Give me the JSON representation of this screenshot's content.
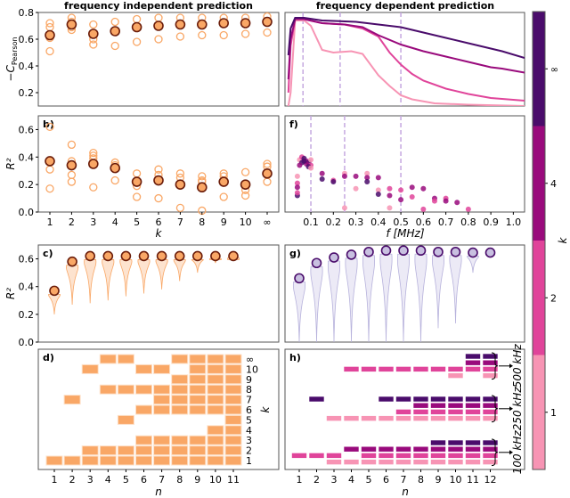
{
  "titles": {
    "left": "frequency independent prediction",
    "right": "frequency dependent prediction"
  },
  "colors": {
    "orange_light": "#f9a766",
    "orange_dark": "#6b1d0a",
    "orange_fill": "#fde3cf",
    "k_inf": "#4a0c6b",
    "k_4": "#990a7c",
    "k_2": "#e0449a",
    "k_1": "#f794b4",
    "dash": "#c5a8e0",
    "violin_g": "#eceaf6",
    "violin_g_edge": "#b7b2dc",
    "g_point": "#c8c0e0"
  },
  "chart_data": [
    {
      "panel": "a",
      "type": "scatter",
      "ylabel": "−C",
      "ylabel_sub": "Pearson",
      "ylim": [
        0.1,
        0.8
      ],
      "yticks": [
        "0.2",
        "0.4",
        "0.6",
        "0.8"
      ],
      "categories": [
        "1",
        "2",
        "3",
        "4",
        "5",
        "6",
        "7",
        "8",
        "9",
        "10",
        "∞"
      ],
      "mean": [
        0.63,
        0.71,
        0.64,
        0.66,
        0.69,
        0.7,
        0.71,
        0.71,
        0.72,
        0.72,
        0.73
      ],
      "individual": [
        [
          0.72,
          0.69,
          0.63,
          0.61,
          0.51
        ],
        [
          0.76,
          0.73,
          0.69,
          0.67
        ],
        [
          0.71,
          0.6,
          0.56
        ],
        [
          0.73,
          0.55
        ],
        [
          0.75,
          0.58
        ],
        [
          0.76,
          0.6
        ],
        [
          0.76,
          0.62
        ],
        [
          0.76,
          0.63
        ],
        [
          0.76,
          0.63
        ],
        [
          0.76,
          0.64
        ],
        [
          0.77,
          0.65
        ]
      ]
    },
    {
      "panel": "b",
      "label": "b)",
      "type": "scatter",
      "ylabel": "R²",
      "xlabel": "k",
      "ylim": [
        0,
        0.7
      ],
      "yticks": [
        "0.0",
        "0.2",
        "0.4",
        "0.6"
      ],
      "categories": [
        "1",
        "2",
        "3",
        "4",
        "5",
        "6",
        "7",
        "8",
        "9",
        "10",
        "∞"
      ],
      "mean": [
        0.37,
        0.34,
        0.35,
        0.32,
        0.22,
        0.23,
        0.2,
        0.18,
        0.22,
        0.2,
        0.28
      ],
      "individual": [
        [
          0.62,
          0.31,
          0.17
        ],
        [
          0.49,
          0.37,
          0.27,
          0.22
        ],
        [
          0.43,
          0.41,
          0.39,
          0.18
        ],
        [
          0.36,
          0.34,
          0.23
        ],
        [
          0.28,
          0.19,
          0.11
        ],
        [
          0.31,
          0.27,
          0.1
        ],
        [
          0.28,
          0.25,
          0.03
        ],
        [
          0.26,
          0.23,
          0.22,
          0.01
        ],
        [
          0.28,
          0.26,
          0.11
        ],
        [
          0.29,
          0.16,
          0.12
        ],
        [
          0.35,
          0.33,
          0.22
        ]
      ]
    },
    {
      "panel": "c",
      "label": "c)",
      "type": "violin",
      "ylabel": "R²",
      "ylim": [
        0,
        0.7
      ],
      "yticks": [
        "0.0",
        "0.2",
        "0.4",
        "0.6"
      ],
      "best": [
        0.37,
        0.58,
        0.62,
        0.62,
        0.62,
        0.62,
        0.62,
        0.62,
        0.62,
        0.62,
        0.62
      ],
      "min": [
        0.2,
        0.27,
        0.28,
        0.3,
        0.33,
        0.35,
        0.38,
        0.44,
        0.5,
        0.57,
        0.61
      ]
    },
    {
      "panel": "d",
      "label": "d)",
      "type": "heatmap",
      "xlabel": "n",
      "ylabel": "k",
      "xticks": [
        "1",
        "2",
        "3",
        "4",
        "5",
        "6",
        "7",
        "8",
        "9",
        "10",
        "11"
      ],
      "rows": [
        {
          "k": "∞",
          "n": [
            4,
            5,
            8,
            9,
            10,
            11
          ]
        },
        {
          "k": "10",
          "n": [
            3,
            6,
            7,
            9,
            10,
            11
          ]
        },
        {
          "k": "9",
          "n": [
            8,
            9,
            10,
            11
          ]
        },
        {
          "k": "8",
          "n": [
            4,
            5,
            6,
            7,
            8,
            9,
            10,
            11
          ]
        },
        {
          "k": "7",
          "n": [
            2,
            7,
            8,
            9,
            10,
            11
          ]
        },
        {
          "k": "6",
          "n": [
            6,
            7,
            8,
            9,
            10,
            11
          ]
        },
        {
          "k": "5",
          "n": [
            5,
            11
          ]
        },
        {
          "k": "4",
          "n": [
            10,
            11
          ]
        },
        {
          "k": "3",
          "n": [
            6,
            7,
            8,
            9,
            10,
            11
          ]
        },
        {
          "k": "2",
          "n": [
            3,
            4,
            5,
            6,
            7,
            8,
            9,
            10,
            11
          ]
        },
        {
          "k": "1",
          "n": [
            1,
            2,
            3,
            4,
            5,
            6,
            7,
            8,
            9,
            10,
            11
          ]
        }
      ]
    },
    {
      "panel": "e",
      "type": "line",
      "ylim": [
        0.1,
        0.8
      ],
      "xlim": [
        -0.015,
        1.05
      ],
      "dashed_x": [
        0.065,
        0.23,
        0.5
      ],
      "series": [
        {
          "k": "1",
          "x": [
            0,
            0.01,
            0.03,
            0.07,
            0.1,
            0.15,
            0.2,
            0.28,
            0.33,
            0.4,
            0.45,
            0.5,
            0.55,
            0.65,
            0.8,
            1.05
          ],
          "y": [
            0.1,
            0.2,
            0.74,
            0.74,
            0.7,
            0.52,
            0.5,
            0.51,
            0.49,
            0.33,
            0.25,
            0.18,
            0.15,
            0.12,
            0.11,
            0.1
          ]
        },
        {
          "k": "2",
          "x": [
            0,
            0.01,
            0.03,
            0.07,
            0.15,
            0.25,
            0.33,
            0.4,
            0.45,
            0.5,
            0.55,
            0.6,
            0.7,
            0.8,
            0.9,
            1.05
          ],
          "y": [
            0.2,
            0.55,
            0.75,
            0.75,
            0.72,
            0.71,
            0.68,
            0.62,
            0.5,
            0.41,
            0.34,
            0.29,
            0.23,
            0.19,
            0.16,
            0.14
          ]
        },
        {
          "k": "4",
          "x": [
            0,
            0.01,
            0.03,
            0.07,
            0.15,
            0.25,
            0.33,
            0.4,
            0.5,
            0.6,
            0.7,
            0.8,
            0.9,
            0.95,
            1.05
          ],
          "y": [
            0.3,
            0.6,
            0.75,
            0.75,
            0.72,
            0.71,
            0.69,
            0.63,
            0.56,
            0.51,
            0.47,
            0.43,
            0.39,
            0.38,
            0.35
          ]
        },
        {
          "k": "∞",
          "x": [
            0,
            0.01,
            0.03,
            0.07,
            0.15,
            0.3,
            0.4,
            0.5,
            0.6,
            0.7,
            0.8,
            0.9,
            0.95,
            1.05
          ],
          "y": [
            0.48,
            0.68,
            0.76,
            0.76,
            0.74,
            0.73,
            0.71,
            0.69,
            0.65,
            0.61,
            0.57,
            0.53,
            0.51,
            0.46
          ]
        }
      ]
    },
    {
      "panel": "f",
      "label": "f)",
      "type": "scatter",
      "xlabel": "f [MHz]",
      "ylim": [
        0,
        0.7
      ],
      "xlim": [
        -0.015,
        1.05
      ],
      "xticks": [
        "0.1",
        "0.2",
        "0.3",
        "0.4",
        "0.5",
        "0.6",
        "0.7",
        "0.8",
        "0.9",
        "1.0"
      ],
      "dashed_x": [
        0.1,
        0.25,
        0.5
      ],
      "points": [
        [
          0.05,
          0.38,
          "1"
        ],
        [
          0.06,
          0.4,
          "2"
        ],
        [
          0.07,
          0.39,
          "∞"
        ],
        [
          0.08,
          0.37,
          "4"
        ],
        [
          0.09,
          0.36,
          "∞"
        ],
        [
          0.1,
          0.38,
          "1"
        ],
        [
          0.06,
          0.36,
          "∞"
        ],
        [
          0.08,
          0.35,
          "4"
        ],
        [
          0.1,
          0.34,
          "2"
        ],
        [
          0.05,
          0.34,
          "4"
        ],
        [
          0.09,
          0.33,
          "∞"
        ],
        [
          0.07,
          0.37,
          "∞"
        ],
        [
          0.1,
          0.32,
          "1"
        ],
        [
          0.04,
          0.26,
          "1"
        ],
        [
          0.04,
          0.21,
          "2"
        ],
        [
          0.04,
          0.18,
          "4"
        ],
        [
          0.04,
          0.12,
          "∞"
        ],
        [
          0.04,
          0.14,
          "2"
        ],
        [
          0.15,
          0.28,
          "4"
        ],
        [
          0.15,
          0.24,
          "∞"
        ],
        [
          0.2,
          0.23,
          "2"
        ],
        [
          0.2,
          0.22,
          "∞"
        ],
        [
          0.25,
          0.28,
          "1"
        ],
        [
          0.25,
          0.26,
          "4"
        ],
        [
          0.25,
          0.03,
          "1"
        ],
        [
          0.3,
          0.26,
          "4"
        ],
        [
          0.3,
          0.17,
          "1"
        ],
        [
          0.35,
          0.28,
          "1"
        ],
        [
          0.35,
          0.25,
          "4"
        ],
        [
          0.35,
          0.22,
          "∞"
        ],
        [
          0.4,
          0.25,
          "4"
        ],
        [
          0.4,
          0.16,
          "1"
        ],
        [
          0.4,
          0.13,
          "∞"
        ],
        [
          0.45,
          0.17,
          "2"
        ],
        [
          0.45,
          0.12,
          "4"
        ],
        [
          0.45,
          0.03,
          "1"
        ],
        [
          0.5,
          0.16,
          "2"
        ],
        [
          0.5,
          0.09,
          "4"
        ],
        [
          0.55,
          0.18,
          "4"
        ],
        [
          0.55,
          0.11,
          "2"
        ],
        [
          0.6,
          0.17,
          "4"
        ],
        [
          0.6,
          0.02,
          "2"
        ],
        [
          0.65,
          0.1,
          "4"
        ],
        [
          0.65,
          0.08,
          "2"
        ],
        [
          0.7,
          0.1,
          "2"
        ],
        [
          0.7,
          0.08,
          "4"
        ],
        [
          0.75,
          0.07,
          "4"
        ],
        [
          0.8,
          0.02,
          "2"
        ]
      ]
    },
    {
      "panel": "g",
      "label": "g)",
      "type": "violin",
      "ylim": [
        0,
        0.7
      ],
      "best": [
        0.46,
        0.57,
        0.61,
        0.63,
        0.65,
        0.66,
        0.66,
        0.66,
        0.65,
        0.65,
        0.645,
        0.645
      ],
      "min": [
        0,
        0,
        0,
        0,
        0,
        0,
        0,
        0,
        0.1,
        0.135,
        0.5,
        0.645
      ]
    },
    {
      "panel": "h",
      "label": "h)",
      "type": "heatmap",
      "xlabel": "n",
      "xticks": [
        "1",
        "2",
        "3",
        "4",
        "5",
        "6",
        "7",
        "8",
        "9",
        "10",
        "11",
        "12"
      ],
      "groups": [
        {
          "label": "500 kHz",
          "rows": [
            {
              "k": "∞",
              "n": [
                11,
                12
              ]
            },
            {
              "k": "4",
              "n": [
                11,
                12
              ]
            },
            {
              "k": "2",
              "n": [
                4,
                5,
                6,
                7,
                8,
                9,
                10,
                11,
                12
              ]
            },
            {
              "k": "1",
              "n": [
                10,
                12
              ]
            }
          ]
        },
        {
          "label": "250 kHz",
          "rows": [
            {
              "k": "∞",
              "n": [
                2,
                6,
                7,
                8,
                9,
                10,
                11,
                12
              ]
            },
            {
              "k": "4",
              "n": [
                8,
                9,
                10,
                11,
                12
              ]
            },
            {
              "k": "2",
              "n": [
                7,
                8,
                9,
                10,
                11,
                12
              ]
            },
            {
              "k": "1",
              "n": [
                3,
                4,
                5,
                6,
                7,
                8,
                9,
                10,
                11,
                12
              ]
            }
          ]
        },
        {
          "label": "100 kHz",
          "rows": [
            {
              "k": "∞",
              "n": [
                9,
                10,
                11,
                12
              ]
            },
            {
              "k": "4",
              "n": [
                4,
                5,
                6,
                7,
                8,
                9,
                10,
                11,
                12
              ]
            },
            {
              "k": "2",
              "n": [
                1,
                2,
                3,
                5,
                6,
                7,
                8,
                9,
                10,
                11,
                12
              ]
            },
            {
              "k": "1",
              "n": [
                3,
                4,
                5,
                6,
                7,
                8,
                9,
                10,
                11,
                12
              ]
            }
          ]
        }
      ]
    },
    {
      "panel": "colorbar",
      "type": "colorbar",
      "label": "k",
      "levels": [
        "1",
        "2",
        "4",
        "∞"
      ]
    }
  ]
}
